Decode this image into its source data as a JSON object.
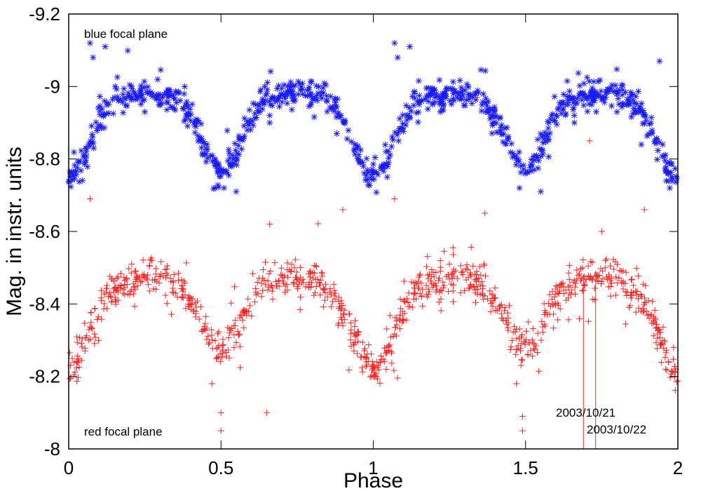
{
  "chart_data": {
    "type": "scatter",
    "xlabel": "Phase",
    "ylabel": "Mag. in instr. units",
    "xlim": [
      0,
      2
    ],
    "ylim": [
      -9.2,
      -8.0
    ],
    "y_inverted": true,
    "x_ticks": [
      "0",
      "0.5",
      "1",
      "1.5",
      "2"
    ],
    "y_ticks": [
      "-9.2",
      "-9",
      "-8.8",
      "-8.6",
      "-8.4",
      "-8.2",
      "-8"
    ],
    "grid": false,
    "series": [
      {
        "name": "blue focal plane",
        "marker": "asterisk",
        "color": "#1a1aff",
        "base_mag": -9.02,
        "primary_eclipse_depth": 0.27,
        "secondary_eclipse_depth": 0.25,
        "n_points": 900,
        "scatter": 0.018,
        "outliers": [
          [
            0.07,
            -9.12
          ],
          [
            0.12,
            -9.11
          ],
          [
            0.08,
            -9.08
          ],
          [
            0.15,
            -8.97
          ],
          [
            0.25,
            -8.93
          ],
          [
            0.48,
            -8.72
          ],
          [
            0.51,
            -8.72
          ],
          [
            0.55,
            -8.71
          ],
          [
            0.66,
            -8.92
          ],
          [
            0.66,
            -8.9
          ],
          [
            0.88,
            -8.87
          ],
          [
            0.94,
            -8.84
          ],
          [
            1.07,
            -9.12
          ],
          [
            1.12,
            -9.11
          ],
          [
            1.08,
            -9.08
          ],
          [
            1.22,
            -8.93
          ],
          [
            1.48,
            -8.72
          ],
          [
            1.55,
            -8.71
          ],
          [
            1.66,
            -8.92
          ],
          [
            1.66,
            -8.9
          ],
          [
            1.72,
            -8.96
          ],
          [
            1.88,
            -8.84
          ],
          [
            1.94,
            -9.07
          ],
          [
            1.95,
            -8.84
          ],
          [
            1.8,
            -8.93
          ]
        ]
      },
      {
        "name": "red focal plane",
        "marker": "plus",
        "color": "#ff2020",
        "base_mag": -8.51,
        "primary_eclipse_depth": 0.29,
        "secondary_eclipse_depth": 0.23,
        "n_points": 1000,
        "scatter": 0.025,
        "outliers": [
          [
            0.07,
            -8.69
          ],
          [
            0.31,
            -8.97
          ],
          [
            0.47,
            -8.18
          ],
          [
            0.5,
            -8.1
          ],
          [
            0.5,
            -8.05
          ],
          [
            0.65,
            -8.1
          ],
          [
            0.66,
            -8.62
          ],
          [
            0.9,
            -8.34
          ],
          [
            0.9,
            -8.66
          ],
          [
            1.01,
            -8.2
          ],
          [
            1.07,
            -8.69
          ],
          [
            1.34,
            -8.97
          ],
          [
            1.47,
            -8.18
          ],
          [
            1.49,
            -8.09
          ],
          [
            1.49,
            -8.05
          ],
          [
            1.71,
            -8.85
          ],
          [
            1.75,
            -8.6
          ],
          [
            1.89,
            -8.66
          ],
          [
            1.96,
            -8.22
          ],
          [
            0.03,
            -8.24
          ]
        ]
      }
    ],
    "annotations": [
      {
        "text": "2003/10/21",
        "arrow_x": 1.69,
        "arrow_y_tip": -8.48
      },
      {
        "text": "2003/10/22",
        "arrow_x": 1.73,
        "arrow_y_tip": -8.49
      }
    ]
  }
}
